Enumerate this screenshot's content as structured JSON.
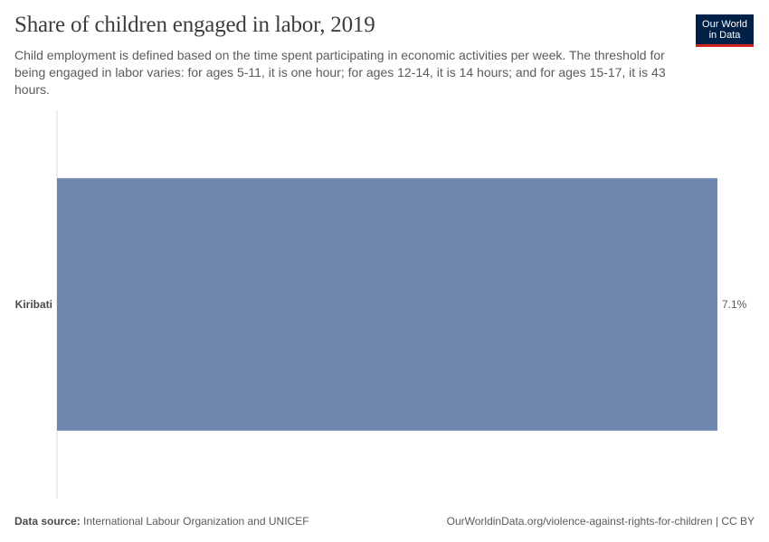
{
  "header": {
    "title": "Share of children engaged in labor, 2019",
    "subtitle": "Child employment is defined based on the time spent participating in economic activities per week. The threshold for being engaged in labor varies: for ages 5-11, it is one hour; for ages 12-14, it is 14 hours; and for ages 15-17, it is 43 hours.",
    "logo_line1": "Our World",
    "logo_line2": "in Data"
  },
  "chart_data": {
    "type": "bar",
    "orientation": "horizontal",
    "title": "Share of children engaged in labor, 2019",
    "categories": [
      "Kiribati"
    ],
    "values": [
      7.1
    ],
    "value_labels": [
      "7.1%"
    ],
    "unit": "%",
    "xlim": [
      0,
      7.1
    ],
    "grid": false,
    "bar_color": "#6f87ae"
  },
  "footer": {
    "source_label": "Data source:",
    "source_text": "International Labour Organization and UNICEF",
    "url": "OurWorldinData.org/violence-against-rights-for-children | CC BY"
  }
}
